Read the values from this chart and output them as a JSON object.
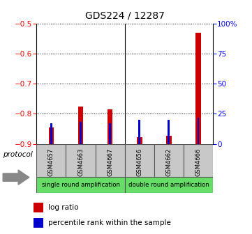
{
  "title": "GDS224 / 12287",
  "samples": [
    "GSM4657",
    "GSM4663",
    "GSM4667",
    "GSM4656",
    "GSM4662",
    "GSM4666"
  ],
  "log_ratio": [
    -0.845,
    -0.775,
    -0.785,
    -0.878,
    -0.872,
    -0.53
  ],
  "percentile": [
    17,
    18,
    17,
    20,
    20,
    22
  ],
  "baseline": -0.9,
  "ylim_left": [
    -0.9,
    -0.5
  ],
  "ylim_right": [
    0,
    100
  ],
  "yticks_left": [
    -0.9,
    -0.8,
    -0.7,
    -0.6,
    -0.5
  ],
  "yticks_right": [
    0,
    25,
    50,
    75,
    100
  ],
  "ytick_labels_right": [
    "0",
    "25",
    "50",
    "75",
    "100%"
  ],
  "bar_color_red": "#cc0000",
  "bar_color_blue": "#0000cc",
  "group1_label": "single round amplification",
  "group2_label": "double round amplification",
  "group_bg_color": "#66dd66",
  "sample_bg_color": "#c8c8c8",
  "protocol_label": "protocol",
  "legend_red": "log ratio",
  "legend_blue": "percentile rank within the sample",
  "bar_width": 0.18,
  "blue_bar_width": 0.07
}
